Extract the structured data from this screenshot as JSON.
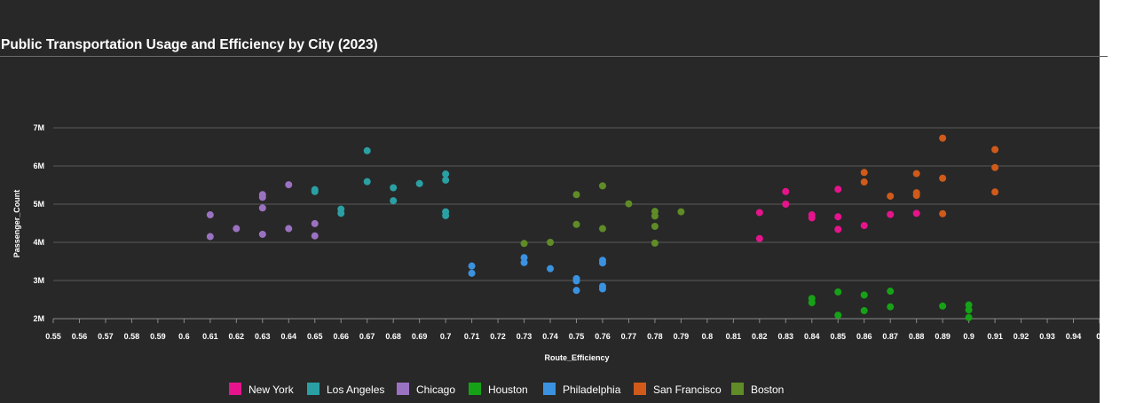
{
  "title": "Public Transportation Usage and Efficiency by City (2023)",
  "chart_data": {
    "type": "scatter",
    "title": "Public Transportation Usage and Efficiency by City (2023)",
    "xlabel": "Route_Efficiency",
    "ylabel": "Passenger_Count",
    "xlim": [
      0.55,
      0.95
    ],
    "ylim": [
      2000000,
      7000000
    ],
    "x_ticks": [
      "0.55",
      "0.56",
      "0.57",
      "0.58",
      "0.59",
      "0.6",
      "0.61",
      "0.62",
      "0.63",
      "0.64",
      "0.65",
      "0.66",
      "0.67",
      "0.68",
      "0.69",
      "0.7",
      "0.71",
      "0.72",
      "0.73",
      "0.74",
      "0.75",
      "0.76",
      "0.77",
      "0.78",
      "0.79",
      "0.8",
      "0.81",
      "0.82",
      "0.83",
      "0.84",
      "0.85",
      "0.86",
      "0.87",
      "0.88",
      "0.89",
      "0.9",
      "0.91",
      "0.92",
      "0.93",
      "0.94",
      "0."
    ],
    "y_ticks": [
      {
        "value": 2000000,
        "label": "2M"
      },
      {
        "value": 3000000,
        "label": "3M"
      },
      {
        "value": 4000000,
        "label": "4M"
      },
      {
        "value": 5000000,
        "label": "5M"
      },
      {
        "value": 6000000,
        "label": "6M"
      },
      {
        "value": 7000000,
        "label": "7M"
      }
    ],
    "grid": "horizontal",
    "legend_position": "bottom",
    "series": [
      {
        "name": "New York",
        "color": "#e5148c",
        "points": [
          [
            0.82,
            4780000
          ],
          [
            0.82,
            4100000
          ],
          [
            0.83,
            5330000
          ],
          [
            0.83,
            5000000
          ],
          [
            0.84,
            4720000
          ],
          [
            0.84,
            4640000
          ],
          [
            0.85,
            5390000
          ],
          [
            0.85,
            4670000
          ],
          [
            0.85,
            4340000
          ],
          [
            0.86,
            4440000
          ],
          [
            0.87,
            4730000
          ],
          [
            0.88,
            4760000
          ]
        ]
      },
      {
        "name": "Los Angeles",
        "color": "#2aa0a4",
        "points": [
          [
            0.65,
            5380000
          ],
          [
            0.65,
            5330000
          ],
          [
            0.66,
            4870000
          ],
          [
            0.66,
            4760000
          ],
          [
            0.67,
            6400000
          ],
          [
            0.67,
            5590000
          ],
          [
            0.68,
            5430000
          ],
          [
            0.68,
            5090000
          ],
          [
            0.69,
            5540000
          ],
          [
            0.7,
            5790000
          ],
          [
            0.7,
            5630000
          ],
          [
            0.7,
            4800000
          ],
          [
            0.7,
            4700000
          ]
        ]
      },
      {
        "name": "Chicago",
        "color": "#9b72c2",
        "points": [
          [
            0.61,
            4720000
          ],
          [
            0.61,
            4150000
          ],
          [
            0.62,
            4360000
          ],
          [
            0.63,
            5250000
          ],
          [
            0.63,
            5180000
          ],
          [
            0.63,
            4900000
          ],
          [
            0.63,
            4210000
          ],
          [
            0.64,
            5510000
          ],
          [
            0.64,
            4360000
          ],
          [
            0.65,
            4490000
          ],
          [
            0.65,
            4170000
          ]
        ]
      },
      {
        "name": "Houston",
        "color": "#16a216",
        "points": [
          [
            0.84,
            2530000
          ],
          [
            0.84,
            2420000
          ],
          [
            0.85,
            2700000
          ],
          [
            0.85,
            2090000
          ],
          [
            0.86,
            2620000
          ],
          [
            0.86,
            2210000
          ],
          [
            0.87,
            2720000
          ],
          [
            0.87,
            2310000
          ],
          [
            0.89,
            2330000
          ],
          [
            0.9,
            2360000
          ],
          [
            0.9,
            2230000
          ],
          [
            0.9,
            2030000
          ]
        ]
      },
      {
        "name": "Philadelphia",
        "color": "#3a92e0",
        "points": [
          [
            0.71,
            3380000
          ],
          [
            0.71,
            3190000
          ],
          [
            0.73,
            3600000
          ],
          [
            0.73,
            3470000
          ],
          [
            0.74,
            3310000
          ],
          [
            0.75,
            3050000
          ],
          [
            0.75,
            2990000
          ],
          [
            0.75,
            2740000
          ],
          [
            0.76,
            3530000
          ],
          [
            0.76,
            3460000
          ],
          [
            0.76,
            2850000
          ],
          [
            0.76,
            2780000
          ]
        ]
      },
      {
        "name": "San Francisco",
        "color": "#d05a1a",
        "points": [
          [
            0.86,
            5830000
          ],
          [
            0.86,
            5580000
          ],
          [
            0.87,
            5210000
          ],
          [
            0.88,
            5800000
          ],
          [
            0.88,
            5300000
          ],
          [
            0.88,
            5230000
          ],
          [
            0.89,
            6730000
          ],
          [
            0.89,
            5680000
          ],
          [
            0.89,
            4750000
          ],
          [
            0.91,
            6430000
          ],
          [
            0.91,
            5960000
          ],
          [
            0.91,
            5320000
          ]
        ]
      },
      {
        "name": "Boston",
        "color": "#5f8c26",
        "points": [
          [
            0.73,
            3970000
          ],
          [
            0.74,
            4000000
          ],
          [
            0.75,
            5250000
          ],
          [
            0.75,
            4470000
          ],
          [
            0.76,
            5480000
          ],
          [
            0.76,
            4360000
          ],
          [
            0.77,
            5010000
          ],
          [
            0.78,
            4810000
          ],
          [
            0.78,
            4690000
          ],
          [
            0.78,
            4420000
          ],
          [
            0.78,
            3980000
          ],
          [
            0.79,
            4800000
          ]
        ]
      }
    ]
  }
}
